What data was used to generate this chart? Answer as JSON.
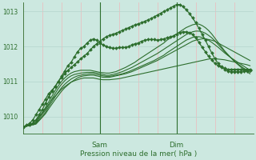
{
  "xlabel": "Pression niveau de la mer( hPa )",
  "bg_color": "#cce8e0",
  "plot_bg_color": "#cce8e0",
  "grid_color_h": "#b8d8d0",
  "grid_color_v": "#e8c0c0",
  "line_color_dark": "#2d6e2d",
  "line_color_medium": "#3d8a3d",
  "ylim": [
    1009.5,
    1013.25
  ],
  "xlim": [
    0,
    72
  ],
  "yticks": [
    1010,
    1011,
    1012,
    1013
  ],
  "day_labels": [
    "Sam",
    "Dim"
  ],
  "day_positions": [
    24,
    48
  ],
  "series": [
    {
      "x": [
        0,
        1,
        2,
        3,
        4,
        5,
        6,
        7,
        8,
        9,
        10,
        11,
        12,
        13,
        14,
        15,
        16,
        17,
        18,
        19,
        20,
        21,
        22,
        23,
        24,
        25,
        26,
        27,
        28,
        29,
        30,
        31,
        32,
        33,
        34,
        35,
        36,
        37,
        38,
        39,
        40,
        41,
        42,
        43,
        44,
        45,
        46,
        47,
        48,
        49,
        50,
        51,
        52,
        53,
        54,
        55,
        56,
        57,
        58,
        59,
        60,
        61,
        62,
        63,
        64,
        65,
        66,
        67,
        68,
        69,
        70,
        71
      ],
      "y": [
        1009.7,
        1009.75,
        1009.8,
        1009.9,
        1010.05,
        1010.2,
        1010.35,
        1010.5,
        1010.65,
        1010.75,
        1010.85,
        1011.0,
        1011.15,
        1011.3,
        1011.45,
        1011.55,
        1011.7,
        1011.85,
        1011.95,
        1012.0,
        1012.1,
        1012.18,
        1012.22,
        1012.18,
        1012.1,
        1012.05,
        1012.0,
        1011.97,
        1011.95,
        1011.95,
        1011.97,
        1011.97,
        1011.98,
        1012.0,
        1012.05,
        1012.08,
        1012.1,
        1012.15,
        1012.18,
        1012.2,
        1012.2,
        1012.2,
        1012.18,
        1012.2,
        1012.22,
        1012.25,
        1012.28,
        1012.3,
        1012.35,
        1012.4,
        1012.42,
        1012.42,
        1012.4,
        1012.35,
        1012.25,
        1012.12,
        1011.98,
        1011.85,
        1011.72,
        1011.62,
        1011.52,
        1011.45,
        1011.4,
        1011.38,
        1011.35,
        1011.35,
        1011.35,
        1011.35,
        1011.35,
        1011.35,
        1011.35,
        1011.35
      ],
      "marker": true,
      "color": "#2d6e2d",
      "lw": 0.9,
      "ms": 2.0
    },
    {
      "x": [
        0,
        1,
        2,
        3,
        4,
        5,
        6,
        7,
        8,
        9,
        10,
        11,
        12,
        13,
        14,
        15,
        16,
        17,
        18,
        19,
        20,
        21,
        22,
        23,
        24,
        25,
        26,
        27,
        28,
        29,
        30,
        31,
        32,
        33,
        34,
        35,
        36,
        37,
        38,
        39,
        40,
        41,
        42,
        43,
        44,
        45,
        46,
        47,
        48,
        49,
        50,
        51,
        52,
        53,
        54,
        55,
        56,
        57,
        58,
        59,
        60,
        61,
        62,
        63,
        64,
        65,
        66,
        67,
        68,
        69,
        70,
        71
      ],
      "y": [
        1009.7,
        1009.72,
        1009.75,
        1009.82,
        1009.9,
        1010.0,
        1010.1,
        1010.22,
        1010.35,
        1010.48,
        1010.58,
        1010.68,
        1010.78,
        1010.85,
        1010.92,
        1010.98,
        1011.02,
        1011.05,
        1011.08,
        1011.1,
        1011.1,
        1011.1,
        1011.1,
        1011.08,
        1011.06,
        1011.05,
        1011.05,
        1011.05,
        1011.06,
        1011.07,
        1011.08,
        1011.1,
        1011.12,
        1011.14,
        1011.16,
        1011.18,
        1011.2,
        1011.22,
        1011.24,
        1011.26,
        1011.28,
        1011.3,
        1011.32,
        1011.34,
        1011.36,
        1011.38,
        1011.4,
        1011.42,
        1011.44,
        1011.46,
        1011.48,
        1011.5,
        1011.52,
        1011.54,
        1011.56,
        1011.58,
        1011.6,
        1011.62,
        1011.64,
        1011.65,
        1011.65,
        1011.64,
        1011.63,
        1011.62,
        1011.6,
        1011.58,
        1011.56,
        1011.54,
        1011.52,
        1011.5,
        1011.48,
        1011.45
      ],
      "marker": false,
      "color": "#2d6e2d",
      "lw": 0.8,
      "ms": 0
    },
    {
      "x": [
        0,
        4,
        5,
        6,
        7,
        8,
        9,
        10,
        11,
        12,
        13,
        14,
        15,
        16,
        17,
        18,
        19,
        20,
        21,
        22,
        23,
        24,
        25,
        26,
        27,
        28,
        29,
        30,
        31,
        32,
        33,
        34,
        35,
        36,
        37,
        38,
        39,
        40,
        41,
        42,
        43,
        44,
        45,
        46,
        47,
        48,
        49,
        50,
        51,
        52,
        53,
        54,
        55,
        56,
        57,
        58,
        59,
        60,
        61,
        62,
        63,
        64,
        65,
        66,
        67,
        68,
        69,
        70,
        71
      ],
      "y": [
        1009.7,
        1009.78,
        1009.88,
        1009.98,
        1010.08,
        1010.22,
        1010.35,
        1010.48,
        1010.6,
        1010.72,
        1010.82,
        1010.9,
        1010.98,
        1011.04,
        1011.1,
        1011.14,
        1011.16,
        1011.17,
        1011.18,
        1011.18,
        1011.16,
        1011.14,
        1011.12,
        1011.12,
        1011.12,
        1011.14,
        1011.16,
        1011.18,
        1011.2,
        1011.22,
        1011.25,
        1011.28,
        1011.32,
        1011.36,
        1011.4,
        1011.44,
        1011.48,
        1011.52,
        1011.56,
        1011.6,
        1011.65,
        1011.7,
        1011.75,
        1011.8,
        1011.85,
        1011.9,
        1011.95,
        1012.0,
        1012.05,
        1012.1,
        1012.15,
        1012.18,
        1012.2,
        1012.22,
        1012.22,
        1012.2,
        1012.18,
        1012.15,
        1012.1,
        1012.05,
        1012.0,
        1011.95,
        1011.9,
        1011.85,
        1011.8,
        1011.75,
        1011.7,
        1011.65,
        1011.6
      ],
      "marker": false,
      "color": "#2d6e2d",
      "lw": 0.8,
      "ms": 0
    },
    {
      "x": [
        0,
        4,
        5,
        6,
        7,
        8,
        9,
        10,
        11,
        12,
        13,
        14,
        15,
        16,
        17,
        18,
        19,
        20,
        21,
        22,
        23,
        24,
        25,
        26,
        27,
        28,
        29,
        30,
        31,
        32,
        33,
        34,
        35,
        36,
        37,
        38,
        39,
        40,
        41,
        42,
        43,
        44,
        45,
        46,
        47,
        48,
        49,
        50,
        51,
        52,
        53,
        54,
        55,
        56,
        57,
        58,
        59,
        60,
        61,
        62,
        63,
        64,
        65,
        66,
        67,
        68,
        69,
        70,
        71
      ],
      "y": [
        1009.7,
        1009.8,
        1009.9,
        1010.0,
        1010.12,
        1010.28,
        1010.42,
        1010.56,
        1010.7,
        1010.82,
        1010.92,
        1011.0,
        1011.07,
        1011.12,
        1011.16,
        1011.18,
        1011.2,
        1011.21,
        1011.22,
        1011.22,
        1011.2,
        1011.18,
        1011.16,
        1011.15,
        1011.15,
        1011.16,
        1011.18,
        1011.2,
        1011.22,
        1011.25,
        1011.28,
        1011.32,
        1011.36,
        1011.4,
        1011.44,
        1011.48,
        1011.52,
        1011.56,
        1011.6,
        1011.65,
        1011.7,
        1011.75,
        1011.82,
        1011.88,
        1011.94,
        1012.0,
        1012.06,
        1012.12,
        1012.18,
        1012.22,
        1012.26,
        1012.28,
        1012.28,
        1012.26,
        1012.22,
        1012.18,
        1012.12,
        1012.05,
        1011.98,
        1011.9,
        1011.82,
        1011.75,
        1011.68,
        1011.62,
        1011.56,
        1011.5,
        1011.44,
        1011.38,
        1011.32
      ],
      "marker": false,
      "color": "#2d6e2d",
      "lw": 0.8,
      "ms": 0
    },
    {
      "x": [
        0,
        4,
        5,
        6,
        7,
        8,
        9,
        10,
        11,
        12,
        13,
        14,
        15,
        16,
        17,
        18,
        19,
        20,
        21,
        22,
        23,
        24,
        25,
        26,
        27,
        28,
        29,
        30,
        31,
        32,
        33,
        34,
        35,
        36,
        37,
        38,
        39,
        40,
        41,
        42,
        43,
        44,
        45,
        46,
        47,
        48,
        49,
        50,
        51,
        52,
        53,
        54,
        55,
        56,
        57,
        58,
        59,
        60,
        61,
        62,
        63,
        64,
        65,
        66,
        67,
        68,
        69,
        70,
        71
      ],
      "y": [
        1009.7,
        1009.82,
        1009.94,
        1010.06,
        1010.18,
        1010.34,
        1010.5,
        1010.65,
        1010.8,
        1010.92,
        1011.02,
        1011.1,
        1011.16,
        1011.2,
        1011.22,
        1011.24,
        1011.25,
        1011.26,
        1011.26,
        1011.26,
        1011.24,
        1011.22,
        1011.2,
        1011.18,
        1011.18,
        1011.2,
        1011.22,
        1011.25,
        1011.28,
        1011.32,
        1011.36,
        1011.4,
        1011.45,
        1011.5,
        1011.55,
        1011.6,
        1011.65,
        1011.7,
        1011.75,
        1011.8,
        1011.86,
        1011.92,
        1011.98,
        1012.04,
        1012.1,
        1012.16,
        1012.22,
        1012.28,
        1012.34,
        1012.38,
        1012.42,
        1012.44,
        1012.44,
        1012.42,
        1012.38,
        1012.32,
        1012.25,
        1012.16,
        1012.06,
        1011.96,
        1011.86,
        1011.76,
        1011.68,
        1011.6,
        1011.52,
        1011.45,
        1011.38,
        1011.32,
        1011.26
      ],
      "marker": false,
      "color": "#2d6e2d",
      "lw": 0.8,
      "ms": 0
    },
    {
      "x": [
        0,
        4,
        5,
        6,
        7,
        8,
        9,
        10,
        11,
        12,
        13,
        14,
        15,
        16,
        17,
        18,
        19,
        20,
        21,
        22,
        23,
        24,
        25,
        26,
        27,
        28,
        29,
        30,
        31,
        32,
        33,
        34,
        35,
        36,
        37,
        38,
        39,
        40,
        41,
        42,
        43,
        44,
        45,
        46,
        47,
        48,
        49,
        50,
        51,
        52,
        53,
        54,
        55,
        56,
        57,
        58,
        59,
        60,
        61,
        62,
        63,
        64,
        65,
        66,
        67,
        68,
        69,
        70,
        71
      ],
      "y": [
        1009.7,
        1009.84,
        1009.98,
        1010.12,
        1010.26,
        1010.42,
        1010.58,
        1010.74,
        1010.88,
        1011.0,
        1011.1,
        1011.18,
        1011.24,
        1011.28,
        1011.3,
        1011.32,
        1011.32,
        1011.32,
        1011.32,
        1011.3,
        1011.28,
        1011.26,
        1011.25,
        1011.24,
        1011.24,
        1011.26,
        1011.28,
        1011.32,
        1011.36,
        1011.4,
        1011.45,
        1011.5,
        1011.55,
        1011.62,
        1011.68,
        1011.74,
        1011.8,
        1011.86,
        1011.92,
        1011.98,
        1012.04,
        1012.1,
        1012.18,
        1012.24,
        1012.3,
        1012.36,
        1012.42,
        1012.48,
        1012.54,
        1012.58,
        1012.62,
        1012.64,
        1012.64,
        1012.6,
        1012.54,
        1012.46,
        1012.36,
        1012.24,
        1012.12,
        1012.0,
        1011.88,
        1011.78,
        1011.68,
        1011.58,
        1011.5,
        1011.42,
        1011.35,
        1011.28,
        1011.22
      ],
      "marker": false,
      "color": "#2d6e2d",
      "lw": 0.8,
      "ms": 0
    },
    {
      "x": [
        0,
        2,
        3,
        4,
        5,
        6,
        7,
        8,
        9,
        10,
        11,
        12,
        13,
        14,
        15,
        16,
        17,
        18,
        19,
        20,
        21,
        22,
        23,
        24,
        25,
        26,
        27,
        28,
        29,
        30,
        31,
        32,
        33,
        34,
        35,
        36,
        37,
        38,
        39,
        40,
        41,
        42,
        43,
        44,
        45,
        46,
        47,
        48,
        49,
        50,
        51,
        52,
        53,
        54,
        55,
        56,
        57,
        58,
        59,
        60,
        61,
        62,
        63,
        64,
        65,
        66,
        67,
        68,
        69,
        70,
        71
      ],
      "y": [
        1009.7,
        1009.75,
        1009.8,
        1009.9,
        1010.05,
        1010.2,
        1010.38,
        1010.56,
        1010.72,
        1010.86,
        1011.0,
        1011.12,
        1011.22,
        1011.32,
        1011.4,
        1011.48,
        1011.56,
        1011.65,
        1011.72,
        1011.8,
        1011.9,
        1012.0,
        1012.08,
        1012.15,
        1012.22,
        1012.28,
        1012.32,
        1012.35,
        1012.38,
        1012.42,
        1012.46,
        1012.5,
        1012.54,
        1012.58,
        1012.62,
        1012.65,
        1012.68,
        1012.72,
        1012.76,
        1012.8,
        1012.85,
        1012.9,
        1012.95,
        1013.0,
        1013.05,
        1013.1,
        1013.15,
        1013.2,
        1013.2,
        1013.15,
        1013.05,
        1012.95,
        1012.82,
        1012.68,
        1012.52,
        1012.35,
        1012.18,
        1012.0,
        1011.82,
        1011.65,
        1011.52,
        1011.42,
        1011.35,
        1011.3,
        1011.28,
        1011.28,
        1011.28,
        1011.28,
        1011.3,
        1011.3,
        1011.32
      ],
      "marker": true,
      "color": "#2d6e2d",
      "lw": 0.9,
      "ms": 2.0
    }
  ],
  "marker_symbol": "D"
}
